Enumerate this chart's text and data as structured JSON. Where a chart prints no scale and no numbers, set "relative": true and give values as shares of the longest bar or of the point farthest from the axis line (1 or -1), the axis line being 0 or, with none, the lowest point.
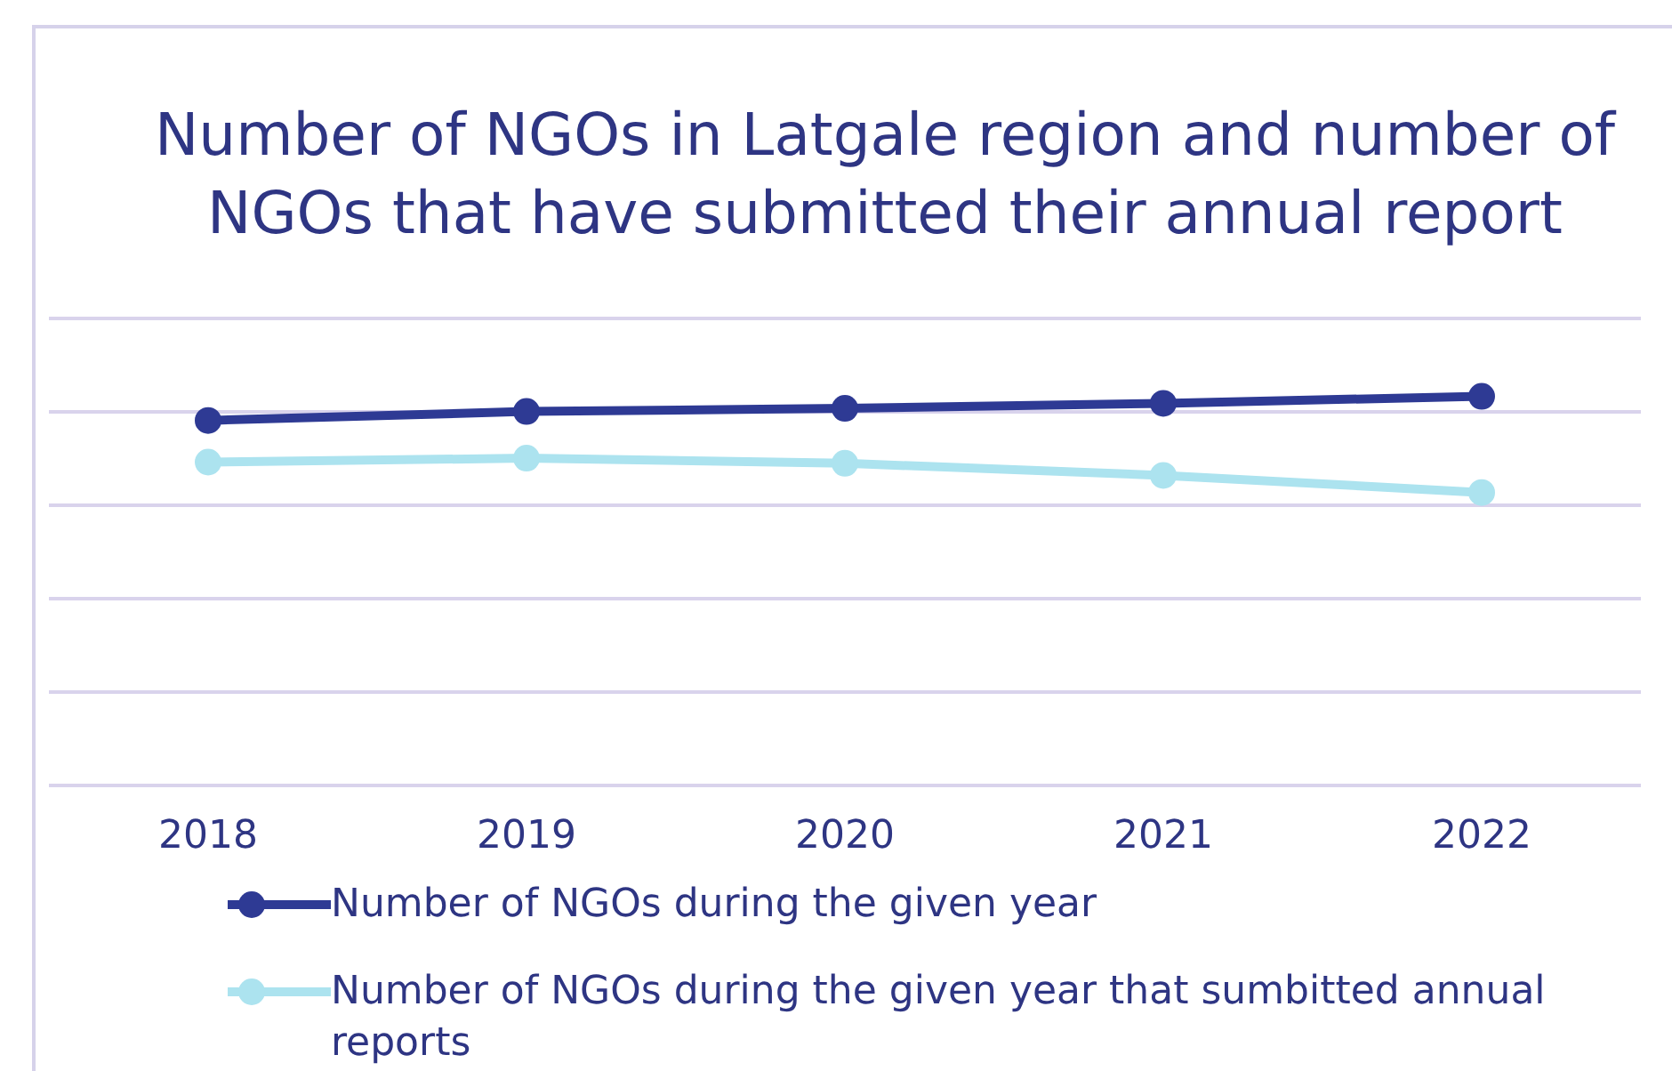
{
  "chart_data": {
    "type": "line",
    "title": "Number of NGOs in Latgale region and number of NGOs that have submitted their annual report",
    "categories": [
      "2018",
      "2019",
      "2020",
      "2021",
      "2022"
    ],
    "relative": true,
    "grid": "y",
    "legend": "bottom",
    "marker": "circle",
    "line_style": "solid",
    "series": [
      {
        "name": "Number of NGOs during the given year",
        "color": "#2e3a94",
        "values": [
          0.938,
          0.961,
          0.969,
          0.982,
          1
        ]
      },
      {
        "name": "Number of NGOs during the given year that sumbitted annual reports",
        "color": "#ace3ef",
        "values": [
          0.831,
          0.841,
          0.828,
          0.797,
          0.753
        ]
      }
    ]
  }
}
